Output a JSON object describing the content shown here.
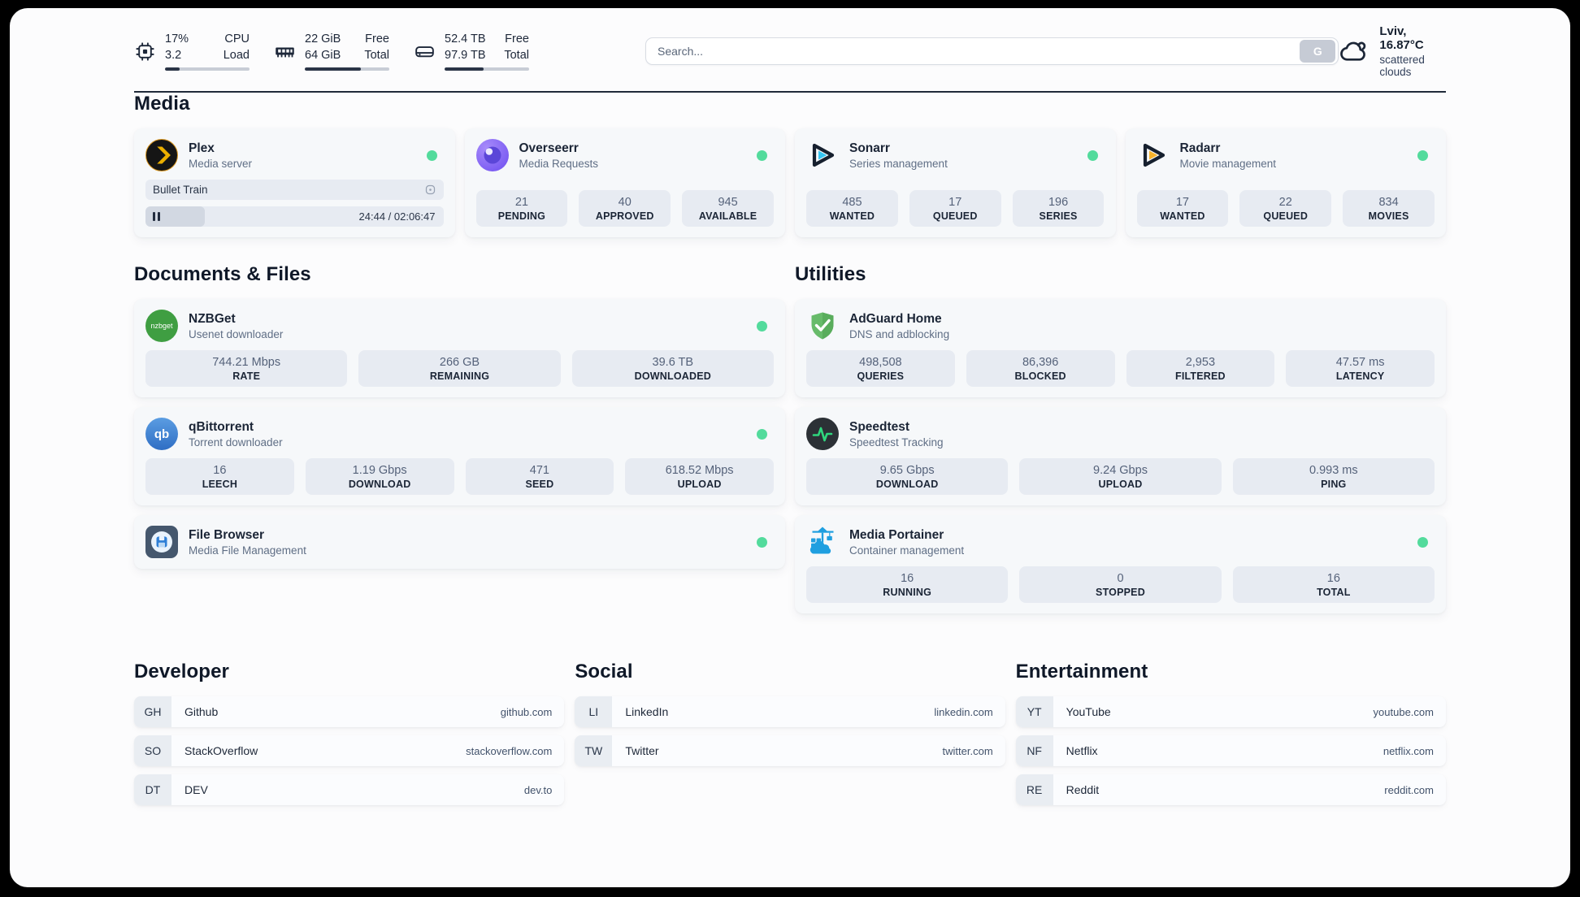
{
  "topbar": {
    "cpu": {
      "values": [
        "17%",
        "3.2"
      ],
      "labels": [
        "CPU",
        "Load"
      ],
      "progress_pct": 17
    },
    "memory": {
      "values": [
        "22 GiB",
        "64 GiB"
      ],
      "labels": [
        "Free",
        "Total"
      ],
      "progress_pct": 66
    },
    "disk": {
      "values": [
        "52.4 TB",
        "97.9 TB"
      ],
      "labels": [
        "Free",
        "Total"
      ],
      "progress_pct": 46
    },
    "search": {
      "placeholder": "Search...",
      "button_label": "G"
    },
    "weather": {
      "location": "Lviv, 16.87°C",
      "condition": "scattered clouds"
    }
  },
  "section_titles": {
    "media": "Media",
    "documents": "Documents & Files",
    "utilities": "Utilities"
  },
  "apps": {
    "plex": {
      "name": "Plex",
      "subtitle": "Media server",
      "now_playing": "Bullet Train",
      "time": "24:44 / 02:06:47",
      "progress_pct": 20
    },
    "overseerr": {
      "name": "Overseerr",
      "subtitle": "Media Requests",
      "stats": [
        {
          "value": "21",
          "label": "PENDING"
        },
        {
          "value": "40",
          "label": "APPROVED"
        },
        {
          "value": "945",
          "label": "AVAILABLE"
        }
      ]
    },
    "sonarr": {
      "name": "Sonarr",
      "subtitle": "Series management",
      "stats": [
        {
          "value": "485",
          "label": "WANTED"
        },
        {
          "value": "17",
          "label": "QUEUED"
        },
        {
          "value": "196",
          "label": "SERIES"
        }
      ]
    },
    "radarr": {
      "name": "Radarr",
      "subtitle": "Movie management",
      "stats": [
        {
          "value": "17",
          "label": "WANTED"
        },
        {
          "value": "22",
          "label": "QUEUED"
        },
        {
          "value": "834",
          "label": "MOVIES"
        }
      ]
    },
    "nzbget": {
      "name": "NZBGet",
      "subtitle": "Usenet downloader",
      "icon_text": "nzbget",
      "stats": [
        {
          "value": "744.21 Mbps",
          "label": "RATE"
        },
        {
          "value": "266 GB",
          "label": "REMAINING"
        },
        {
          "value": "39.6 TB",
          "label": "DOWNLOADED"
        }
      ]
    },
    "qbittorrent": {
      "name": "qBittorrent",
      "subtitle": "Torrent downloader",
      "icon_text": "qb",
      "stats": [
        {
          "value": "16",
          "label": "LEECH"
        },
        {
          "value": "1.19 Gbps",
          "label": "DOWNLOAD"
        },
        {
          "value": "471",
          "label": "SEED"
        },
        {
          "value": "618.52 Mbps",
          "label": "UPLOAD"
        }
      ]
    },
    "filebrowser": {
      "name": "File Browser",
      "subtitle": "Media File Management"
    },
    "adguard": {
      "name": "AdGuard Home",
      "subtitle": "DNS and adblocking",
      "stats": [
        {
          "value": "498,508",
          "label": "QUERIES"
        },
        {
          "value": "86,396",
          "label": "BLOCKED"
        },
        {
          "value": "2,953",
          "label": "FILTERED"
        },
        {
          "value": "47.57 ms",
          "label": "LATENCY"
        }
      ]
    },
    "speedtest": {
      "name": "Speedtest",
      "subtitle": "Speedtest Tracking",
      "stats": [
        {
          "value": "9.65 Gbps",
          "label": "DOWNLOAD"
        },
        {
          "value": "9.24 Gbps",
          "label": "UPLOAD"
        },
        {
          "value": "0.993 ms",
          "label": "PING"
        }
      ]
    },
    "portainer": {
      "name": "Media Portainer",
      "subtitle": "Container management",
      "stats": [
        {
          "value": "16",
          "label": "RUNNING"
        },
        {
          "value": "0",
          "label": "STOPPED"
        },
        {
          "value": "16",
          "label": "TOTAL"
        }
      ]
    }
  },
  "bookmarks": [
    {
      "title": "Developer",
      "links": [
        {
          "abbr": "GH",
          "name": "Github",
          "url": "github.com"
        },
        {
          "abbr": "SO",
          "name": "StackOverflow",
          "url": "stackoverflow.com"
        },
        {
          "abbr": "DT",
          "name": "DEV",
          "url": "dev.to"
        }
      ]
    },
    {
      "title": "Social",
      "links": [
        {
          "abbr": "LI",
          "name": "LinkedIn",
          "url": "linkedin.com"
        },
        {
          "abbr": "TW",
          "name": "Twitter",
          "url": "twitter.com"
        }
      ]
    },
    {
      "title": "Entertainment",
      "links": [
        {
          "abbr": "YT",
          "name": "YouTube",
          "url": "youtube.com"
        },
        {
          "abbr": "NF",
          "name": "Netflix",
          "url": "netflix.com"
        },
        {
          "abbr": "RE",
          "name": "Reddit",
          "url": "reddit.com"
        }
      ]
    }
  ],
  "colors": {
    "status_green": "#53db9c",
    "plex_orange": "#ebaf00",
    "sonarr_cyan": "#35c5f1",
    "radarr_amber": "#f7b32b",
    "nzbget_green": "#3f9e42",
    "qbittorrent_blue": "#3a7bd5",
    "adguard_green": "#67bb6a",
    "speedtest_green": "#2fd77e",
    "portainer_blue": "#1f9fe0",
    "dark_navy": "#1d2739"
  }
}
